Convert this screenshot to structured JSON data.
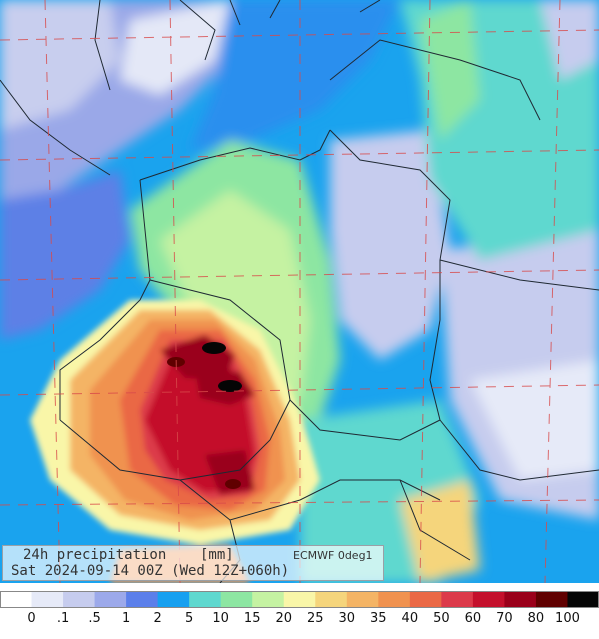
{
  "panel": {
    "title": "24h precipitation",
    "unit": "[mm]",
    "model": "ECMWF 0deg1",
    "valid": "Sat 2024-09-14 00Z (Wed 12Z+060h)"
  },
  "legend": {
    "classes": [
      {
        "label": "0",
        "color": "#ffffff"
      },
      {
        "label": ".1",
        "color": "#e6eaf8"
      },
      {
        "label": ".5",
        "color": "#c6ccee"
      },
      {
        "label": "1",
        "color": "#9ca9ea"
      },
      {
        "label": "2",
        "color": "#5b7fea"
      },
      {
        "label": "5",
        "color": "#17a0f0"
      },
      {
        "label": "10",
        "color": "#5fd8cf"
      },
      {
        "label": "15",
        "color": "#8de6a2"
      },
      {
        "label": "20",
        "color": "#c5f2a2"
      },
      {
        "label": "25",
        "color": "#f9f6a8"
      },
      {
        "label": "30",
        "color": "#f5d57c"
      },
      {
        "label": "35",
        "color": "#f4b465"
      },
      {
        "label": "40",
        "color": "#f0924f"
      },
      {
        "label": "50",
        "color": "#ea6845"
      },
      {
        "label": "60",
        "color": "#dc3a4a"
      },
      {
        "label": "70",
        "color": "#c4102c"
      },
      {
        "label": "80",
        "color": "#9a001a"
      },
      {
        "label": "100",
        "color": "#600000"
      },
      {
        "label": "",
        "color": "#050505"
      }
    ]
  }
}
